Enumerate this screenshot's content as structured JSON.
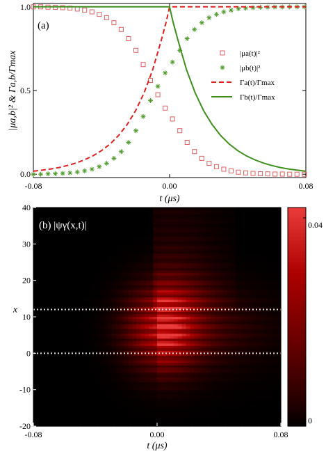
{
  "chart_data": [
    {
      "type": "line",
      "panel_label": "(a)",
      "xlabel": "t (μs)",
      "ylabel": "|μa,b|² & Γa,b/Γmax",
      "xlim": [
        -0.08,
        0.08
      ],
      "ylim": [
        -0.02,
        1.02
      ],
      "x_ticks": [
        "-0.08",
        "0.00",
        "0.08"
      ],
      "y_ticks": [
        "0.0",
        "0.5",
        "1.0"
      ],
      "legend": [
        "|μa(t)|²",
        "|μb(t)|²",
        "Γa(t)/Γmax",
        "Γb(t)/Γmax"
      ],
      "legend_position": "right",
      "series": [
        {
          "name": "|μa(t)|²",
          "style": "markers-square-open",
          "color": "#e06060",
          "x": [
            -0.08,
            -0.0757,
            -0.0714,
            -0.0671,
            -0.0628,
            -0.0585,
            -0.0542,
            -0.0499,
            -0.0456,
            -0.0413,
            -0.037,
            -0.0327,
            -0.0284,
            -0.0241,
            -0.0198,
            -0.0155,
            -0.0112,
            -0.0069,
            -0.0026,
            0.0017,
            0.006,
            0.0103,
            0.0146,
            0.0189,
            0.0232,
            0.0275,
            0.0318,
            0.0361,
            0.0404,
            0.0447,
            0.049,
            0.0533,
            0.0576,
            0.0619,
            0.0662,
            0.0705,
            0.0748,
            0.0791
          ],
          "values": [
            1.0,
            1.0,
            0.998,
            0.997,
            0.995,
            0.992,
            0.987,
            0.98,
            0.97,
            0.955,
            0.935,
            0.905,
            0.865,
            0.81,
            0.74,
            0.655,
            0.56,
            0.475,
            0.395,
            0.33,
            0.26,
            0.19,
            0.135,
            0.095,
            0.065,
            0.045,
            0.03,
            0.02,
            0.012,
            0.008,
            0.005,
            0.003,
            0.002,
            0.001,
            0.001,
            0.0,
            0.0,
            0.0
          ]
        },
        {
          "name": "|μb(t)|²",
          "style": "markers-asterisk",
          "color": "#4e9a2a",
          "x": [
            -0.08,
            -0.0757,
            -0.0714,
            -0.0671,
            -0.0628,
            -0.0585,
            -0.0542,
            -0.0499,
            -0.0456,
            -0.0413,
            -0.037,
            -0.0327,
            -0.0284,
            -0.0241,
            -0.0198,
            -0.0155,
            -0.0112,
            -0.0069,
            -0.0026,
            0.0017,
            0.006,
            0.0103,
            0.0146,
            0.0189,
            0.0232,
            0.0275,
            0.0318,
            0.0361,
            0.0404,
            0.0447,
            0.049,
            0.0533,
            0.0576,
            0.0619,
            0.0662,
            0.0705,
            0.0748,
            0.0791
          ],
          "values": [
            0.0,
            0.0,
            0.002,
            0.003,
            0.005,
            0.008,
            0.013,
            0.02,
            0.03,
            0.045,
            0.065,
            0.095,
            0.135,
            0.19,
            0.26,
            0.345,
            0.44,
            0.525,
            0.605,
            0.67,
            0.74,
            0.81,
            0.865,
            0.905,
            0.935,
            0.955,
            0.97,
            0.98,
            0.988,
            0.992,
            0.995,
            0.997,
            0.998,
            0.999,
            0.999,
            1.0,
            1.0,
            1.0
          ]
        },
        {
          "name": "Γa(t)/Γmax",
          "style": "dashed",
          "color": "#e02020",
          "x": [
            -0.08,
            -0.075,
            -0.07,
            -0.065,
            -0.06,
            -0.055,
            -0.05,
            -0.045,
            -0.04,
            -0.035,
            -0.03,
            -0.025,
            -0.02,
            -0.015,
            -0.01,
            -0.005,
            -0.002,
            0.0,
            0.0,
            0.08
          ],
          "values": [
            0.018,
            0.024,
            0.031,
            0.04,
            0.052,
            0.067,
            0.086,
            0.11,
            0.141,
            0.18,
            0.231,
            0.296,
            0.379,
            0.486,
            0.622,
            0.797,
            0.91,
            1.0,
            1.0,
            1.0
          ]
        },
        {
          "name": "Γb(t)/Γmax",
          "style": "solid",
          "color": "#3f8f1e",
          "x": [
            -0.08,
            -0.04,
            0.0,
            0.0,
            0.002,
            0.005,
            0.01,
            0.015,
            0.02,
            0.025,
            0.03,
            0.035,
            0.04,
            0.045,
            0.05,
            0.055,
            0.06,
            0.065,
            0.07,
            0.075,
            0.08
          ],
          "values": [
            1.0,
            1.0,
            1.0,
            1.0,
            0.91,
            0.797,
            0.622,
            0.486,
            0.379,
            0.296,
            0.231,
            0.18,
            0.141,
            0.11,
            0.086,
            0.067,
            0.052,
            0.04,
            0.031,
            0.024,
            0.018
          ]
        }
      ]
    },
    {
      "type": "heatmap",
      "panel_label": "(b) |ψγ(x,t)|",
      "xlabel": "t (μs)",
      "ylabel": "x",
      "xlim": [
        -0.08,
        0.08
      ],
      "ylim": [
        -20,
        40
      ],
      "x_ticks": [
        "-0.08",
        "0.00",
        "0.08"
      ],
      "y_ticks": [
        "-20",
        "-10",
        "0",
        "10",
        "20",
        "30",
        "40"
      ],
      "colorbar": {
        "min": 0,
        "max": 0.042,
        "ticks": [
          "0",
          "0.04"
        ],
        "colormap": "black-to-red"
      },
      "overlay_lines": [
        {
          "style": "dotted",
          "color": "#dddddd",
          "y": 12
        },
        {
          "style": "dotted",
          "color": "#dddddd",
          "y": 0
        }
      ],
      "description_peak": {
        "t": 0.0,
        "x": 8,
        "value": 0.042
      }
    }
  ]
}
